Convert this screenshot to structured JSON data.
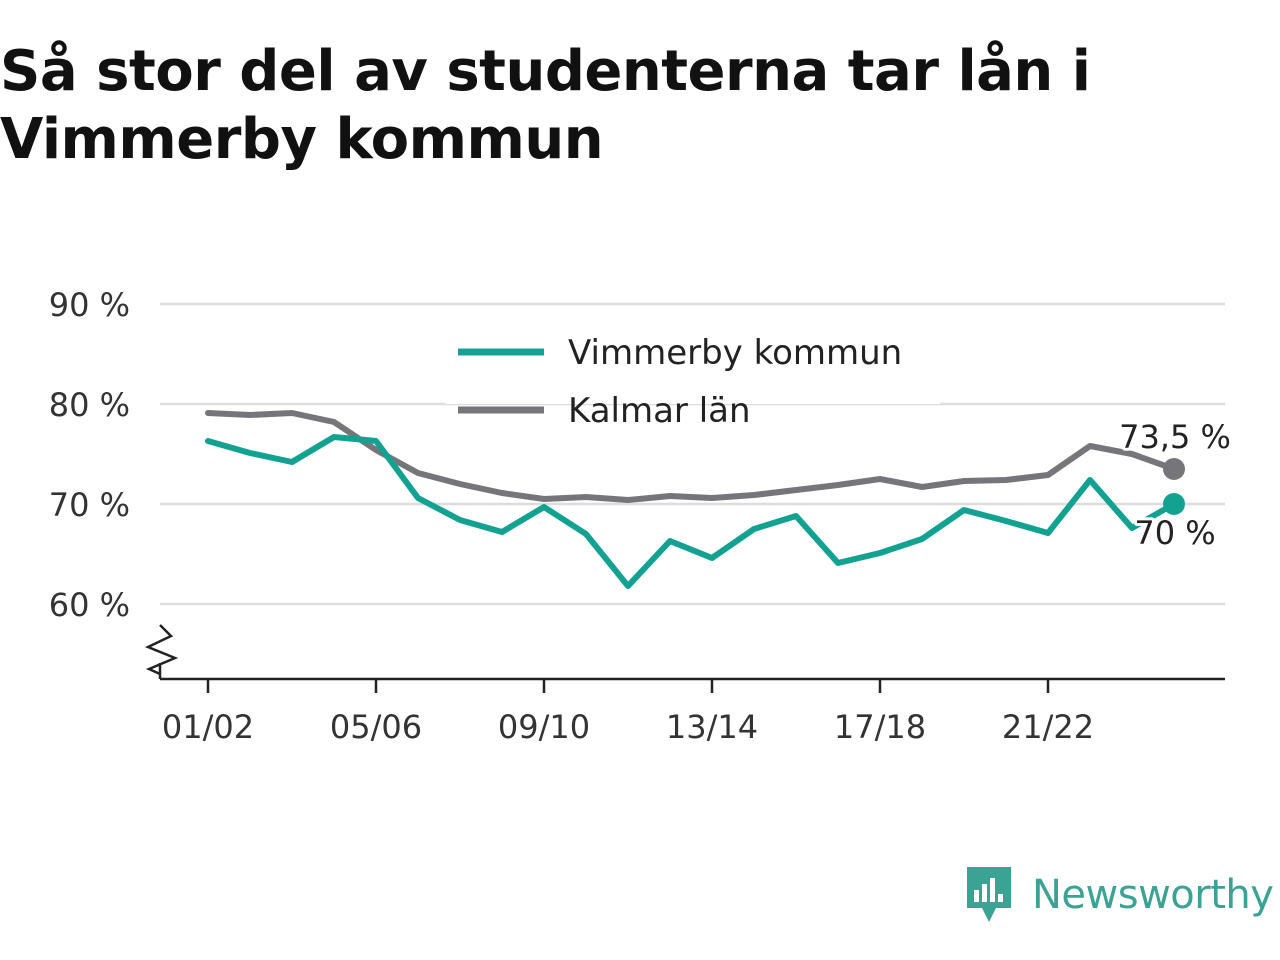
{
  "title": "Så stor del av studenterna tar lån i Vimmerby kommun",
  "brand": {
    "name": "Newsworthy",
    "logo_icon": "newsworthy-logo-icon",
    "color": "#3aa394"
  },
  "chart_data": {
    "type": "line",
    "title": "Så stor del av studenterna tar lån i Vimmerby kommun",
    "xlabel": "",
    "ylabel": "",
    "x": [
      "01/02",
      "02/03",
      "03/04",
      "04/05",
      "05/06",
      "06/07",
      "07/08",
      "08/09",
      "09/10",
      "10/11",
      "11/12",
      "12/13",
      "13/14",
      "14/15",
      "15/16",
      "16/17",
      "17/18",
      "18/19",
      "19/20",
      "20/21",
      "21/22",
      "22/23",
      "23/24",
      "24/25"
    ],
    "x_tick_labels": [
      "01/02",
      "05/06",
      "09/10",
      "13/14",
      "17/18",
      "21/22"
    ],
    "y_ticks": [
      60,
      70,
      80,
      90
    ],
    "y_tick_labels": [
      "60 %",
      "70 %",
      "80 %",
      "90 %"
    ],
    "ylim": [
      52.5,
      90
    ],
    "axis_break": true,
    "grid": true,
    "legend_position": "top-center",
    "series": [
      {
        "name": "Vimmerby kommun",
        "color": "#13a291",
        "values": [
          76.3,
          75.1,
          74.2,
          76.7,
          76.3,
          70.6,
          68.4,
          67.2,
          69.7,
          67.0,
          61.8,
          66.3,
          64.6,
          67.5,
          68.8,
          64.1,
          65.1,
          66.5,
          69.4,
          68.3,
          67.1,
          72.4,
          67.6,
          70.0
        ],
        "end_label": "70 %"
      },
      {
        "name": "Kalmar län",
        "color": "#76757a",
        "values": [
          79.1,
          78.9,
          79.1,
          78.2,
          75.4,
          73.1,
          72.0,
          71.1,
          70.5,
          70.7,
          70.4,
          70.8,
          70.6,
          70.9,
          71.4,
          71.9,
          72.5,
          71.7,
          72.3,
          72.4,
          72.9,
          75.8,
          75.0,
          73.5
        ],
        "end_label": "73,5 %"
      }
    ]
  }
}
